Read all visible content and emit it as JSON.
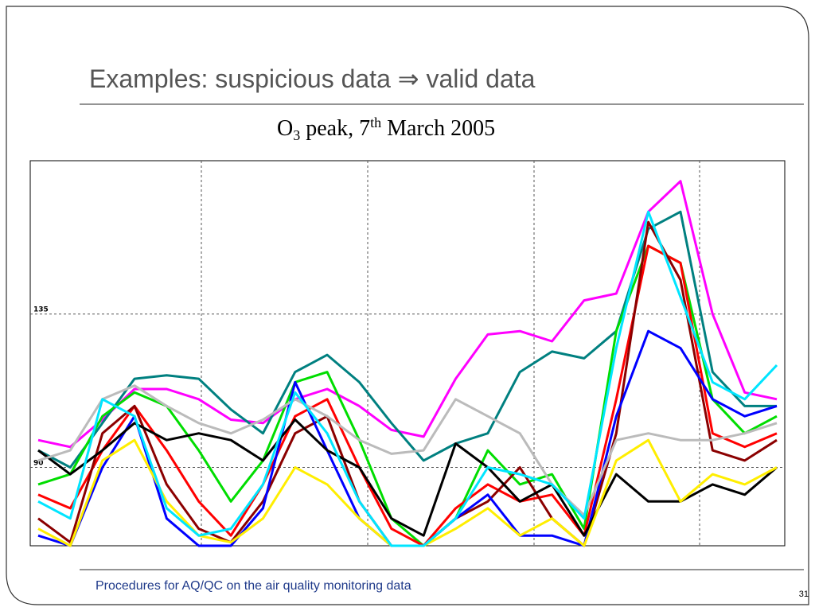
{
  "slide": {
    "title": "Examples: suspicious data ⇒ valid data",
    "footer": "Procedures for AQ/QC on the air quality monitoring data",
    "page_number": "31"
  },
  "chart_data": {
    "type": "line",
    "title": [
      "O",
      "3",
      " peak, 7",
      "th",
      " March 2005"
    ],
    "ylim": [
      67,
      180
    ],
    "yticks": [
      90,
      135
    ],
    "grid": true,
    "series": [
      {
        "color": "#ff00ff",
        "values": [
          98,
          96,
          104,
          113,
          113,
          110,
          104,
          103,
          110,
          113,
          108,
          101,
          99,
          116,
          129,
          130,
          127,
          139,
          141,
          165,
          174,
          135,
          112,
          110
        ]
      },
      {
        "color": "#008080",
        "values": [
          95,
          90,
          103,
          116,
          117,
          116,
          107,
          100,
          118,
          123,
          115,
          103,
          92,
          97,
          100,
          118,
          124,
          122,
          130,
          160,
          165,
          118,
          108,
          108
        ]
      },
      {
        "color": "#00dd00",
        "values": [
          85,
          88,
          105,
          112,
          108,
          95,
          80,
          92,
          115,
          118,
          98,
          75,
          67,
          75,
          95,
          85,
          88,
          72,
          130,
          155,
          150,
          110,
          100,
          105
        ]
      },
      {
        "color": "#ff0000",
        "values": [
          82,
          78,
          95,
          108,
          95,
          80,
          70,
          85,
          105,
          110,
          90,
          72,
          67,
          78,
          85,
          80,
          82,
          70,
          110,
          155,
          150,
          100,
          96,
          100
        ]
      },
      {
        "color": "#8b0000",
        "values": [
          75,
          68,
          100,
          108,
          85,
          72,
          68,
          80,
          100,
          105,
          80,
          67,
          67,
          75,
          80,
          90,
          75,
          67,
          100,
          162,
          145,
          95,
          92,
          98
        ]
      },
      {
        "color": "#0000ff",
        "values": [
          70,
          67,
          90,
          105,
          75,
          67,
          67,
          78,
          115,
          95,
          75,
          67,
          67,
          75,
          82,
          70,
          70,
          67,
          105,
          130,
          125,
          110,
          105,
          108
        ]
      },
      {
        "color": "#000000",
        "values": [
          95,
          88,
          95,
          103,
          98,
          100,
          98,
          92,
          104,
          95,
          90,
          75,
          70,
          97,
          90,
          80,
          85,
          70,
          88,
          80,
          80,
          85,
          82,
          90
        ]
      },
      {
        "color": "#bbbbbb",
        "values": [
          92,
          95,
          110,
          114,
          108,
          103,
          100,
          104,
          110,
          105,
          98,
          94,
          95,
          110,
          105,
          100,
          85,
          76,
          98,
          100,
          98,
          98,
          100,
          103
        ]
      },
      {
        "color": "#ffee00",
        "values": [
          72,
          67,
          92,
          98,
          80,
          70,
          68,
          75,
          90,
          85,
          75,
          67,
          67,
          72,
          78,
          70,
          75,
          67,
          92,
          98,
          80,
          88,
          85,
          90
        ]
      },
      {
        "color": "#00e5ff",
        "values": [
          80,
          75,
          110,
          105,
          78,
          70,
          72,
          85,
          112,
          100,
          80,
          67,
          67,
          75,
          90,
          88,
          85,
          75,
          125,
          165,
          140,
          115,
          110,
          120
        ]
      }
    ]
  }
}
